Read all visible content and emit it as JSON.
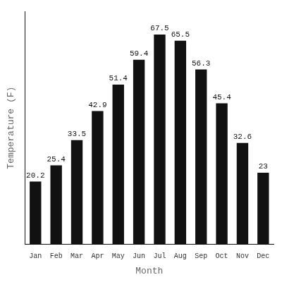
{
  "chart_data": {
    "type": "bar",
    "categories": [
      "Jan",
      "Feb",
      "Mar",
      "Apr",
      "May",
      "Jun",
      "Jul",
      "Aug",
      "Sep",
      "Oct",
      "Nov",
      "Dec"
    ],
    "values": [
      20.2,
      25.4,
      33.5,
      42.9,
      51.4,
      59.4,
      67.5,
      65.5,
      56.3,
      45.4,
      32.6,
      23.0
    ],
    "color": "#111111",
    "xlabel": "Month",
    "ylabel": "Temperature (F)",
    "ylim": [
      0,
      75
    ],
    "grid": false,
    "data_labels": true,
    "tick_labels": "x"
  }
}
